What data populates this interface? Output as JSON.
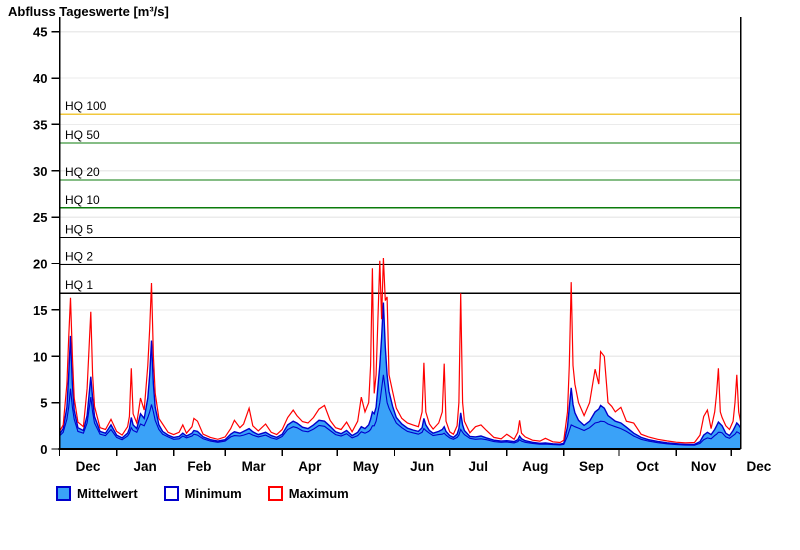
{
  "title": "Abfluss Tageswerte [m³/s]",
  "legend": {
    "items": [
      {
        "label": "Mittelwert",
        "swatch_fill": "#3aa2f8",
        "swatch_border": "#0000cc"
      },
      {
        "label": "Minimum",
        "swatch_fill": "#ffffff",
        "swatch_border": "#0000cc"
      },
      {
        "label": "Maximum",
        "swatch_fill": "#ffffff",
        "swatch_border": "#ff0000"
      }
    ]
  },
  "colors": {
    "area_fill": "#3aa2f8",
    "mean_line": "#0000cc",
    "min_line": "#0000cc",
    "max_line": "#ff0000",
    "hq_yellow": "#f2c83c",
    "hq_green": "#0b7b0b",
    "hq_black": "#000000",
    "grid": "#ebebeb",
    "axis": "#000000"
  },
  "chart_data": {
    "type": "area",
    "title": "Abfluss Tageswerte [m³/s]",
    "unit": "m³/s",
    "ylabel": "Abfluss Tageswerte [m³/s]",
    "ylim": [
      0,
      45
    ],
    "ytick_step": 5,
    "grid": true,
    "legend_position": "bottom-left",
    "x_axis": {
      "month_labels": [
        "Dec",
        "Jan",
        "Feb",
        "Mar",
        "Apr",
        "May",
        "Jun",
        "Jul",
        "Aug",
        "Sep",
        "Oct",
        "Nov",
        "Dec"
      ],
      "month_boundary_days": [
        0,
        31,
        62,
        90,
        121,
        151,
        182,
        212,
        243,
        274,
        304,
        335,
        365
      ],
      "domain_days": [
        0,
        370
      ]
    },
    "hq_lines": [
      {
        "label": "HQ 100",
        "value": 36.1,
        "color": "#f2c83c"
      },
      {
        "label": "HQ 50",
        "value": 33.0,
        "color": "#0b7b0b"
      },
      {
        "label": "HQ 20",
        "value": 29.0,
        "color": "#0b7b0b"
      },
      {
        "label": "HQ 10",
        "value": 26.0,
        "color": "#0b7b0b"
      },
      {
        "label": "HQ 5",
        "value": 22.8,
        "color": "#000000"
      },
      {
        "label": "HQ 2",
        "value": 19.9,
        "color": "#000000"
      },
      {
        "label": "HQ 1",
        "value": 16.8,
        "color": "#000000"
      }
    ],
    "series_names": [
      "Mittelwert",
      "Minimum",
      "Maximum"
    ],
    "points_format": [
      "day_from_dec1",
      "mittelwert",
      "minimum",
      "maximum"
    ],
    "points": [
      [
        0,
        1.6,
        1.4,
        1.9
      ],
      [
        2,
        2.2,
        1.8,
        2.6
      ],
      [
        4,
        4.5,
        3.2,
        7.0
      ],
      [
        5,
        8.0,
        4.5,
        12.0
      ],
      [
        6,
        12.2,
        6.5,
        16.3
      ],
      [
        7,
        7.0,
        4.5,
        10.0
      ],
      [
        8,
        4.2,
        3.2,
        5.5
      ],
      [
        10,
        2.3,
        1.9,
        2.9
      ],
      [
        13,
        2.0,
        1.7,
        2.4
      ],
      [
        15,
        3.6,
        2.8,
        6.5
      ],
      [
        17,
        7.8,
        5.6,
        14.8
      ],
      [
        18,
        5.5,
        4.0,
        8.0
      ],
      [
        19,
        3.5,
        2.8,
        4.6
      ],
      [
        22,
        1.9,
        1.6,
        2.3
      ],
      [
        25,
        1.7,
        1.45,
        2.1
      ],
      [
        28,
        2.6,
        2.1,
        3.2
      ],
      [
        31,
        1.5,
        1.25,
        1.9
      ],
      [
        34,
        1.2,
        1.0,
        1.5
      ],
      [
        37,
        1.7,
        1.4,
        2.4
      ],
      [
        38,
        2.2,
        1.7,
        3.5
      ],
      [
        39,
        3.4,
        2.3,
        8.7
      ],
      [
        40,
        2.6,
        2.0,
        3.8
      ],
      [
        42,
        2.2,
        1.8,
        2.8
      ],
      [
        44,
        3.8,
        2.7,
        5.5
      ],
      [
        46,
        3.3,
        2.5,
        4.2
      ],
      [
        48,
        5.5,
        3.4,
        9.0
      ],
      [
        49,
        8.0,
        4.0,
        13.0
      ],
      [
        50,
        11.7,
        4.8,
        17.9
      ],
      [
        51,
        7.0,
        4.0,
        10.0
      ],
      [
        52,
        4.5,
        3.1,
        6.0
      ],
      [
        54,
        2.6,
        2.1,
        3.3
      ],
      [
        56,
        1.9,
        1.6,
        2.7
      ],
      [
        59,
        1.5,
        1.3,
        1.8
      ],
      [
        62,
        1.25,
        1.05,
        1.55
      ],
      [
        65,
        1.35,
        1.1,
        1.8
      ],
      [
        67,
        1.7,
        1.4,
        2.6
      ],
      [
        69,
        1.4,
        1.2,
        1.7
      ],
      [
        72,
        1.7,
        1.4,
        2.4
      ],
      [
        73,
        2.0,
        1.6,
        3.3
      ],
      [
        75,
        1.9,
        1.5,
        3.0
      ],
      [
        78,
        1.3,
        1.1,
        1.6
      ],
      [
        82,
        1.0,
        0.85,
        1.25
      ],
      [
        86,
        0.85,
        0.72,
        1.05
      ],
      [
        90,
        1.0,
        0.85,
        1.3
      ],
      [
        93,
        1.6,
        1.3,
        2.2
      ],
      [
        95,
        1.85,
        1.45,
        3.1
      ],
      [
        98,
        1.7,
        1.4,
        2.3
      ],
      [
        100,
        1.9,
        1.5,
        2.7
      ],
      [
        103,
        2.2,
        1.7,
        4.4
      ],
      [
        105,
        1.85,
        1.5,
        2.5
      ],
      [
        108,
        1.55,
        1.3,
        1.95
      ],
      [
        112,
        1.8,
        1.5,
        2.7
      ],
      [
        115,
        1.45,
        1.2,
        1.8
      ],
      [
        118,
        1.25,
        1.05,
        1.55
      ],
      [
        121,
        1.6,
        1.35,
        2.1
      ],
      [
        124,
        2.6,
        2.1,
        3.4
      ],
      [
        127,
        3.0,
        2.4,
        4.2
      ],
      [
        129,
        2.8,
        2.3,
        3.6
      ],
      [
        132,
        2.35,
        1.95,
        2.95
      ],
      [
        135,
        2.2,
        1.85,
        2.8
      ],
      [
        138,
        2.6,
        2.15,
        3.4
      ],
      [
        141,
        3.1,
        2.55,
        4.3
      ],
      [
        144,
        3.0,
        2.45,
        4.7
      ],
      [
        147,
        2.45,
        2.0,
        3.1
      ],
      [
        150,
        1.85,
        1.55,
        2.3
      ],
      [
        153,
        1.65,
        1.4,
        2.1
      ],
      [
        156,
        2.0,
        1.65,
        2.9
      ],
      [
        159,
        1.45,
        1.2,
        1.85
      ],
      [
        162,
        1.8,
        1.45,
        3.0
      ],
      [
        164,
        2.4,
        1.85,
        5.6
      ],
      [
        166,
        2.2,
        1.7,
        4.0
      ],
      [
        168,
        2.6,
        1.9,
        5.0
      ],
      [
        169,
        3.2,
        2.1,
        9.0
      ],
      [
        170,
        4.0,
        2.5,
        19.5
      ],
      [
        171,
        3.8,
        2.5,
        6.0
      ],
      [
        172,
        4.5,
        3.0,
        8.0
      ],
      [
        174,
        9.0,
        5.0,
        20.3
      ],
      [
        175,
        12.0,
        6.5,
        14.0
      ],
      [
        176,
        15.8,
        8.0,
        20.6
      ],
      [
        177,
        11.0,
        6.5,
        16.0
      ],
      [
        178,
        8.0,
        5.0,
        16.4
      ],
      [
        179,
        6.2,
        4.4,
        8.0
      ],
      [
        181,
        4.6,
        3.6,
        6.2
      ],
      [
        183,
        3.4,
        2.8,
        4.4
      ],
      [
        186,
        2.7,
        2.3,
        3.3
      ],
      [
        189,
        2.25,
        1.9,
        2.8
      ],
      [
        192,
        2.05,
        1.75,
        2.6
      ],
      [
        195,
        1.9,
        1.6,
        2.4
      ],
      [
        197,
        2.3,
        1.8,
        4.0
      ],
      [
        198,
        3.3,
        2.2,
        9.3
      ],
      [
        199,
        2.6,
        2.0,
        4.0
      ],
      [
        201,
        2.0,
        1.7,
        2.7
      ],
      [
        203,
        1.7,
        1.45,
        2.15
      ],
      [
        206,
        1.9,
        1.55,
        2.8
      ],
      [
        208,
        2.1,
        1.6,
        4.0
      ],
      [
        209,
        2.4,
        1.7,
        9.2
      ],
      [
        210,
        1.9,
        1.5,
        3.0
      ],
      [
        212,
        1.45,
        1.2,
        1.85
      ],
      [
        214,
        1.25,
        1.05,
        1.6
      ],
      [
        216,
        1.6,
        1.25,
        2.5
      ],
      [
        217,
        2.2,
        1.5,
        5.0
      ],
      [
        218,
        3.9,
        2.1,
        16.8
      ],
      [
        219,
        2.6,
        1.8,
        5.0
      ],
      [
        220,
        2.0,
        1.55,
        3.0
      ],
      [
        223,
        1.35,
        1.15,
        1.75
      ],
      [
        226,
        1.3,
        1.05,
        2.4
      ],
      [
        229,
        1.4,
        1.1,
        2.6
      ],
      [
        232,
        1.2,
        1.0,
        2.0
      ],
      [
        236,
        0.95,
        0.8,
        1.25
      ],
      [
        240,
        0.85,
        0.72,
        1.1
      ],
      [
        243,
        0.9,
        0.75,
        1.6
      ],
      [
        247,
        0.8,
        0.66,
        1.05
      ],
      [
        249,
        1.0,
        0.8,
        1.8
      ],
      [
        250,
        1.4,
        1.0,
        3.1
      ],
      [
        251,
        1.1,
        0.85,
        1.7
      ],
      [
        253,
        0.9,
        0.72,
        1.3
      ],
      [
        257,
        0.72,
        0.6,
        0.95
      ],
      [
        261,
        0.62,
        0.52,
        0.85
      ],
      [
        264,
        0.66,
        0.53,
        1.15
      ],
      [
        268,
        0.56,
        0.47,
        0.78
      ],
      [
        272,
        0.52,
        0.43,
        0.7
      ],
      [
        274,
        0.62,
        0.5,
        0.95
      ],
      [
        276,
        2.4,
        1.4,
        4.0
      ],
      [
        277,
        4.5,
        2.0,
        9.0
      ],
      [
        278,
        6.6,
        2.6,
        18.0
      ],
      [
        279,
        4.8,
        2.5,
        9.0
      ],
      [
        280,
        3.9,
        2.4,
        7.0
      ],
      [
        282,
        3.1,
        2.25,
        5.0
      ],
      [
        285,
        2.55,
        2.0,
        3.6
      ],
      [
        288,
        3.0,
        2.3,
        5.0
      ],
      [
        291,
        4.0,
        2.8,
        8.6
      ],
      [
        293,
        4.3,
        2.9,
        7.0
      ],
      [
        294,
        4.7,
        3.0,
        10.5
      ],
      [
        296,
        4.4,
        2.95,
        10.0
      ],
      [
        298,
        3.6,
        2.7,
        5.0
      ],
      [
        300,
        3.3,
        2.55,
        4.6
      ],
      [
        302,
        3.0,
        2.4,
        4.0
      ],
      [
        305,
        2.8,
        2.2,
        4.5
      ],
      [
        308,
        2.35,
        1.9,
        3.0
      ],
      [
        312,
        1.7,
        1.4,
        2.8
      ],
      [
        316,
        1.25,
        1.05,
        1.6
      ],
      [
        320,
        1.0,
        0.85,
        1.3
      ],
      [
        325,
        0.82,
        0.68,
        1.05
      ],
      [
        330,
        0.67,
        0.56,
        0.87
      ],
      [
        335,
        0.57,
        0.47,
        0.73
      ],
      [
        340,
        0.5,
        0.42,
        0.66
      ],
      [
        345,
        0.5,
        0.41,
        0.7
      ],
      [
        348,
        0.8,
        0.6,
        1.5
      ],
      [
        350,
        1.5,
        1.0,
        3.5
      ],
      [
        352,
        1.8,
        1.2,
        4.2
      ],
      [
        354,
        1.55,
        1.1,
        2.2
      ],
      [
        356,
        2.1,
        1.45,
        4.0
      ],
      [
        357,
        2.5,
        1.6,
        6.0
      ],
      [
        358,
        2.9,
        1.8,
        8.7
      ],
      [
        359,
        2.7,
        1.8,
        4.0
      ],
      [
        360,
        2.5,
        1.75,
        3.4
      ],
      [
        362,
        1.7,
        1.3,
        2.5
      ],
      [
        364,
        1.45,
        1.15,
        2.1
      ],
      [
        366,
        2.0,
        1.45,
        3.0
      ],
      [
        367,
        2.4,
        1.6,
        5.0
      ],
      [
        368,
        2.8,
        1.85,
        8.0
      ],
      [
        369,
        2.6,
        1.75,
        4.0
      ],
      [
        370,
        2.3,
        1.6,
        3.0
      ]
    ]
  }
}
